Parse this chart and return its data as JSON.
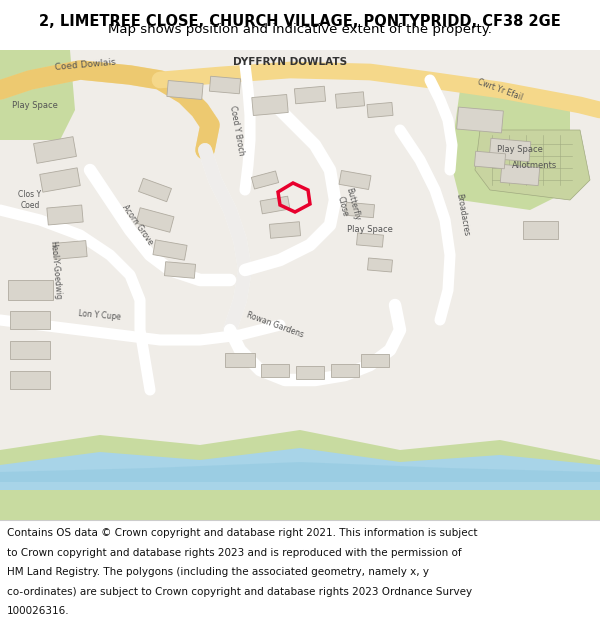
{
  "title_line1": "2, LIMETREE CLOSE, CHURCH VILLAGE, PONTYPRIDD, CF38 2GE",
  "title_line2": "Map shows position and indicative extent of the property.",
  "footer_lines": [
    "Contains OS data © Crown copyright and database right 2021. This information is subject",
    "to Crown copyright and database rights 2023 and is reproduced with the permission of",
    "HM Land Registry. The polygons (including the associated geometry, namely x, y",
    "co-ordinates) are subject to Crown copyright and database rights 2023 Ordnance Survey",
    "100026316."
  ],
  "title_fontsize": 10.5,
  "subtitle_fontsize": 9.5,
  "footer_fontsize": 7.5,
  "map_bg": "#f0ede8",
  "road_color_main": "#f5d88a",
  "building_fill": "#d9d5cc",
  "building_edge": "#b0aba0",
  "green_fill": "#c8dba0",
  "water_color": "#a8d4e8",
  "highlight_color": "#e8002d",
  "header_bg": "#ffffff",
  "footer_bg": "#ffffff",
  "fig_width": 6.0,
  "fig_height": 6.25,
  "dpi": 100
}
